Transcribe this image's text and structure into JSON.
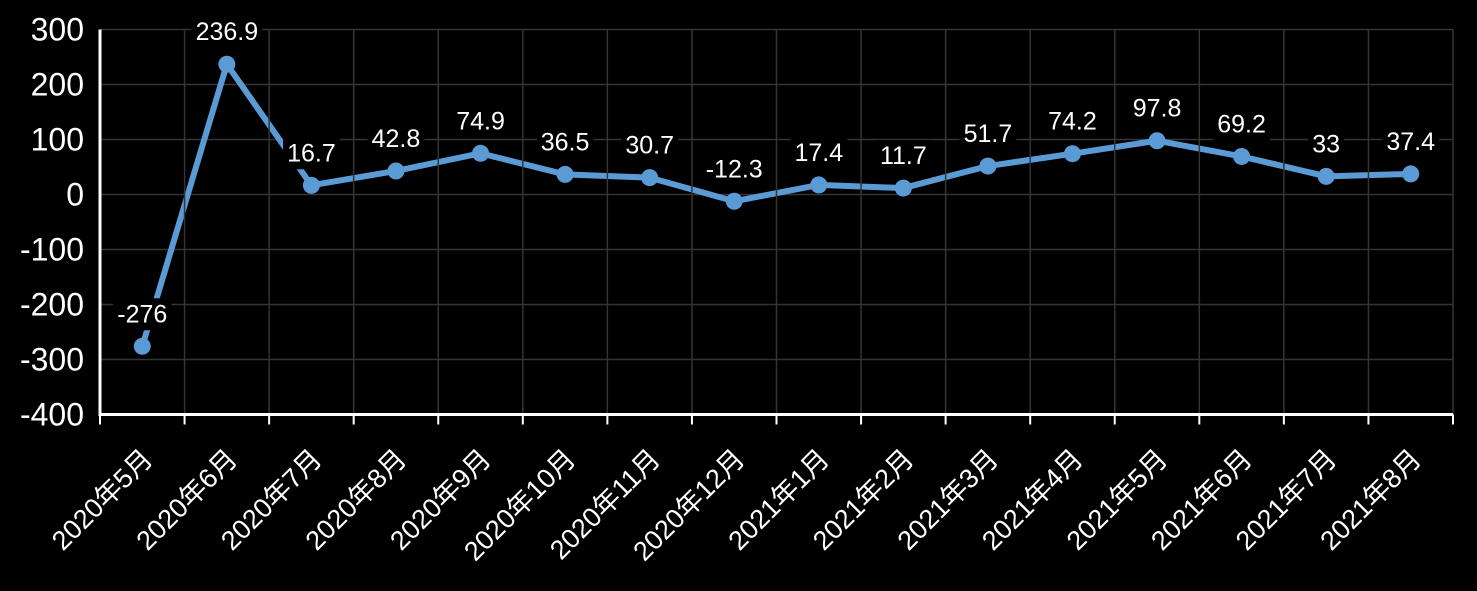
{
  "chart_data": {
    "type": "line",
    "title": "",
    "xlabel": "",
    "ylabel": "",
    "categories": [
      "2020年5月",
      "2020年6月",
      "2020年7月",
      "2020年8月",
      "2020年9月",
      "2020年10月",
      "2020年11月",
      "2020年12月",
      "2021年1月",
      "2021年2月",
      "2021年3月",
      "2021年4月",
      "2021年5月",
      "2021年6月",
      "2021年7月",
      "2021年8月"
    ],
    "values": [
      -276,
      236.9,
      16.7,
      42.8,
      74.9,
      36.5,
      30.7,
      -12.3,
      17.4,
      11.7,
      51.7,
      74.2,
      97.8,
      69.2,
      33,
      37.4
    ],
    "data_labels": [
      "-276",
      "236.9",
      "16.7",
      "42.8",
      "74.9",
      "36.5",
      "30.7",
      "-12.3",
      "17.4",
      "11.7",
      "51.7",
      "74.2",
      "97.8",
      "69.2",
      "33",
      "37.4"
    ],
    "ylim": [
      -400,
      300
    ],
    "yticks": [
      300,
      200,
      100,
      0,
      -100,
      -200,
      -300,
      -400
    ],
    "grid": true,
    "legend": false,
    "marker": "circle",
    "colors": {
      "background": "#000000",
      "line": "#5B9BD5",
      "marker_fill": "#5B9BD5",
      "grid": "#343434",
      "axis": "#FFFFFF",
      "axis_label": "#FFFFFF",
      "data_label": "#FFFFFF",
      "data_label_bg": "#000000"
    }
  }
}
